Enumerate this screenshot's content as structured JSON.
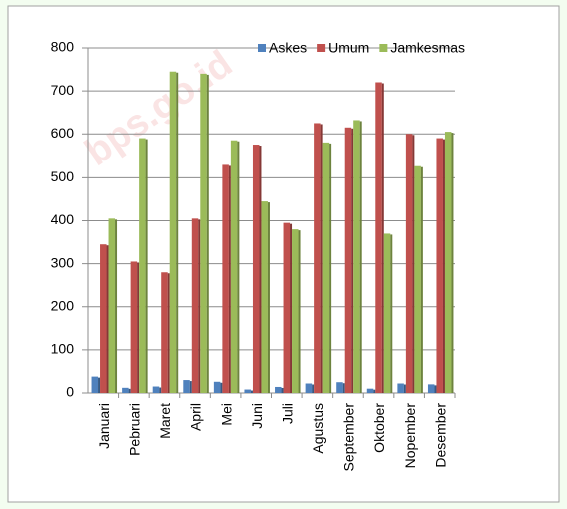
{
  "chart_data": {
    "type": "bar",
    "watermark": "bps.go.id",
    "categories": [
      "Januari",
      "Pebruari",
      "Maret",
      "April",
      "Mei",
      "Juni",
      "Juli",
      "Agustus",
      "September",
      "Oktober",
      "Nopember",
      "Desember"
    ],
    "series": [
      {
        "name": "Askes",
        "color": "#4f81bd",
        "values": [
          38,
          12,
          15,
          30,
          26,
          8,
          14,
          22,
          25,
          10,
          22,
          20
        ]
      },
      {
        "name": "Umum",
        "color": "#c0504d",
        "values": [
          345,
          305,
          280,
          405,
          530,
          575,
          395,
          625,
          615,
          720,
          600,
          590
        ]
      },
      {
        "name": "Jamkesmas",
        "color": "#9bbb59",
        "values": [
          405,
          590,
          745,
          740,
          585,
          445,
          380,
          580,
          632,
          370,
          527,
          605
        ]
      }
    ],
    "ylim": [
      0,
      800
    ],
    "yticks": [
      0,
      100,
      200,
      300,
      400,
      500,
      600,
      700,
      800
    ],
    "grid": true,
    "legend": "top-right"
  }
}
